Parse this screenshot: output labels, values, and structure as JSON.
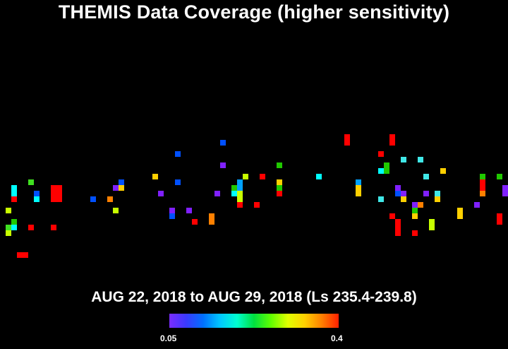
{
  "title": "THEMIS Data Coverage (higher sensitivity)",
  "subtitle": "AUG 22, 2018 to AUG 29, 2018 (Ls 235.4-239.8)",
  "colorbar": {
    "min_label": "0.05",
    "max_label": "0.4",
    "colors": [
      "#7a2cff",
      "#3a3aff",
      "#0070ff",
      "#00c8ff",
      "#00ffd0",
      "#00e040",
      "#60ff00",
      "#e0ff00",
      "#ffd000",
      "#ff8000",
      "#ff2000"
    ]
  },
  "coverage_colors": {
    "red": "#ff0000",
    "orange_red": "#ff4000",
    "orange": "#ff8000",
    "yellow": "#ffd000",
    "yellow_green": "#c8ff00",
    "green": "#20c800",
    "green_light": "#40e020",
    "cyan": "#00ffff",
    "cyan_light": "#40e8e8",
    "blue_light": "#00a0ff",
    "blue": "#0050ff",
    "violet": "#8020ff",
    "purple": "#9030ff"
  }
}
